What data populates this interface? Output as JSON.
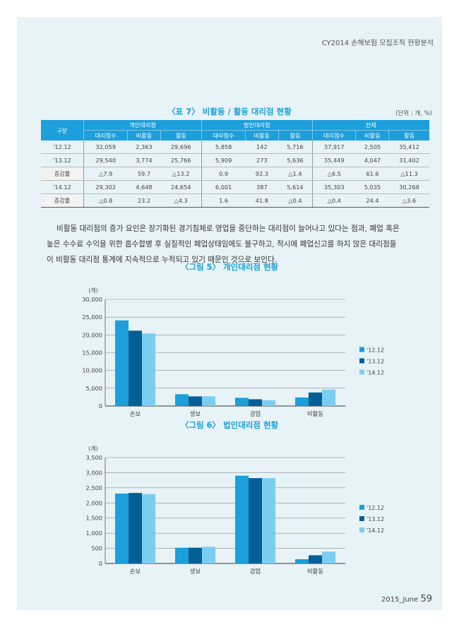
{
  "header": "CY2014 손해보험 모집조직 현황분석",
  "table": {
    "title": "〈표 7〉 비활동 / 활동 대리점 현황",
    "unit": "(단위 : 개, %)",
    "groups": [
      "구분",
      "개인대리점",
      "법인대리점",
      "전체"
    ],
    "subheads": [
      "대리점수",
      "비활동",
      "활동",
      "대리점수",
      "비활동",
      "활동",
      "대리점수",
      "비활동",
      "활동"
    ],
    "rows": [
      [
        "'12.12",
        "32,059",
        "2,363",
        "29,696",
        "5,858",
        "142",
        "5,716",
        "37,917",
        "2,505",
        "35,412"
      ],
      [
        "'13.12",
        "29,540",
        "3,774",
        "25,766",
        "5,909",
        "273",
        "5,636",
        "35,449",
        "4,047",
        "31,402"
      ],
      [
        "증감률",
        "△7.9",
        "59.7",
        "△13.2",
        "0.9",
        "92.3",
        "△1.4",
        "△6.5",
        "61.6",
        "△11.3"
      ],
      [
        "'14.12",
        "29,302",
        "4,648",
        "24,654",
        "6,001",
        "387",
        "5,614",
        "35,303",
        "5,035",
        "30,268"
      ],
      [
        "증감률",
        "△0.8",
        "23.2",
        "△4.3",
        "1.6",
        "41.8",
        "△0.4",
        "△0.4",
        "24.4",
        "△3.6"
      ]
    ]
  },
  "paragraph": {
    "lines": [
      "비활동 대리점의 증가 요인은 장기화된 경기침체로 영업을 중단하는 대리점이 늘어나고 있다는 점과, 폐업 혹은",
      "높은 수수료 수익을 위한 흡수합병 후 실질적인 폐업상태임에도 불구하고, 적시에 폐업신고를 하지 않은 대리점들",
      "이 비활동 대리점 통계에 지속적으로 누적되고 있기 때문인 것으로 보인다."
    ]
  },
  "colors": {
    "s1": "#1c9fdb",
    "s2": "#045f96",
    "s3": "#7ccdf2",
    "table_header": "#1c9fdb",
    "accent": "#1e9fd6"
  },
  "chart_data": [
    {
      "type": "bar",
      "title": "〈그림 5〉 개인대리점 현황",
      "ylabel": "(개)",
      "categories": [
        "손보",
        "생보",
        "겸업",
        "비활동"
      ],
      "ylim": [
        0,
        30000
      ],
      "yticks": [
        0,
        5000,
        10000,
        15000,
        20000,
        25000,
        30000
      ],
      "ytick_labels": [
        "0",
        "5,000",
        "10,000",
        "15,000",
        "20,000",
        "25,000",
        "30,000"
      ],
      "series": [
        {
          "name": "'12.12",
          "values": [
            24100,
            3300,
            2300,
            2400
          ]
        },
        {
          "name": "'13.12",
          "values": [
            21200,
            2700,
            1900,
            3800
          ]
        },
        {
          "name": "'14.12",
          "values": [
            20400,
            2700,
            1600,
            4600
          ]
        }
      ],
      "grid": true,
      "legend": "right"
    },
    {
      "type": "bar",
      "title": "〈그림 6〉 법인대리점 현황",
      "ylabel": "(개)",
      "categories": [
        "손보",
        "생보",
        "겸업",
        "비활동"
      ],
      "ylim": [
        0,
        3500
      ],
      "yticks": [
        0,
        500,
        1000,
        1500,
        2000,
        2500,
        3000,
        3500
      ],
      "ytick_labels": [
        "0",
        "500",
        "1,000",
        "1,500",
        "2,000",
        "2,500",
        "3,000",
        "3,500"
      ],
      "series": [
        {
          "name": "'12.12",
          "values": [
            2310,
            520,
            2900,
            140
          ]
        },
        {
          "name": "'13.12",
          "values": [
            2330,
            520,
            2820,
            270
          ]
        },
        {
          "name": "'14.12",
          "values": [
            2290,
            550,
            2820,
            390
          ]
        }
      ],
      "grid": true,
      "legend": "right"
    }
  ],
  "footer": {
    "text": "2015_June ",
    "page": "59"
  }
}
